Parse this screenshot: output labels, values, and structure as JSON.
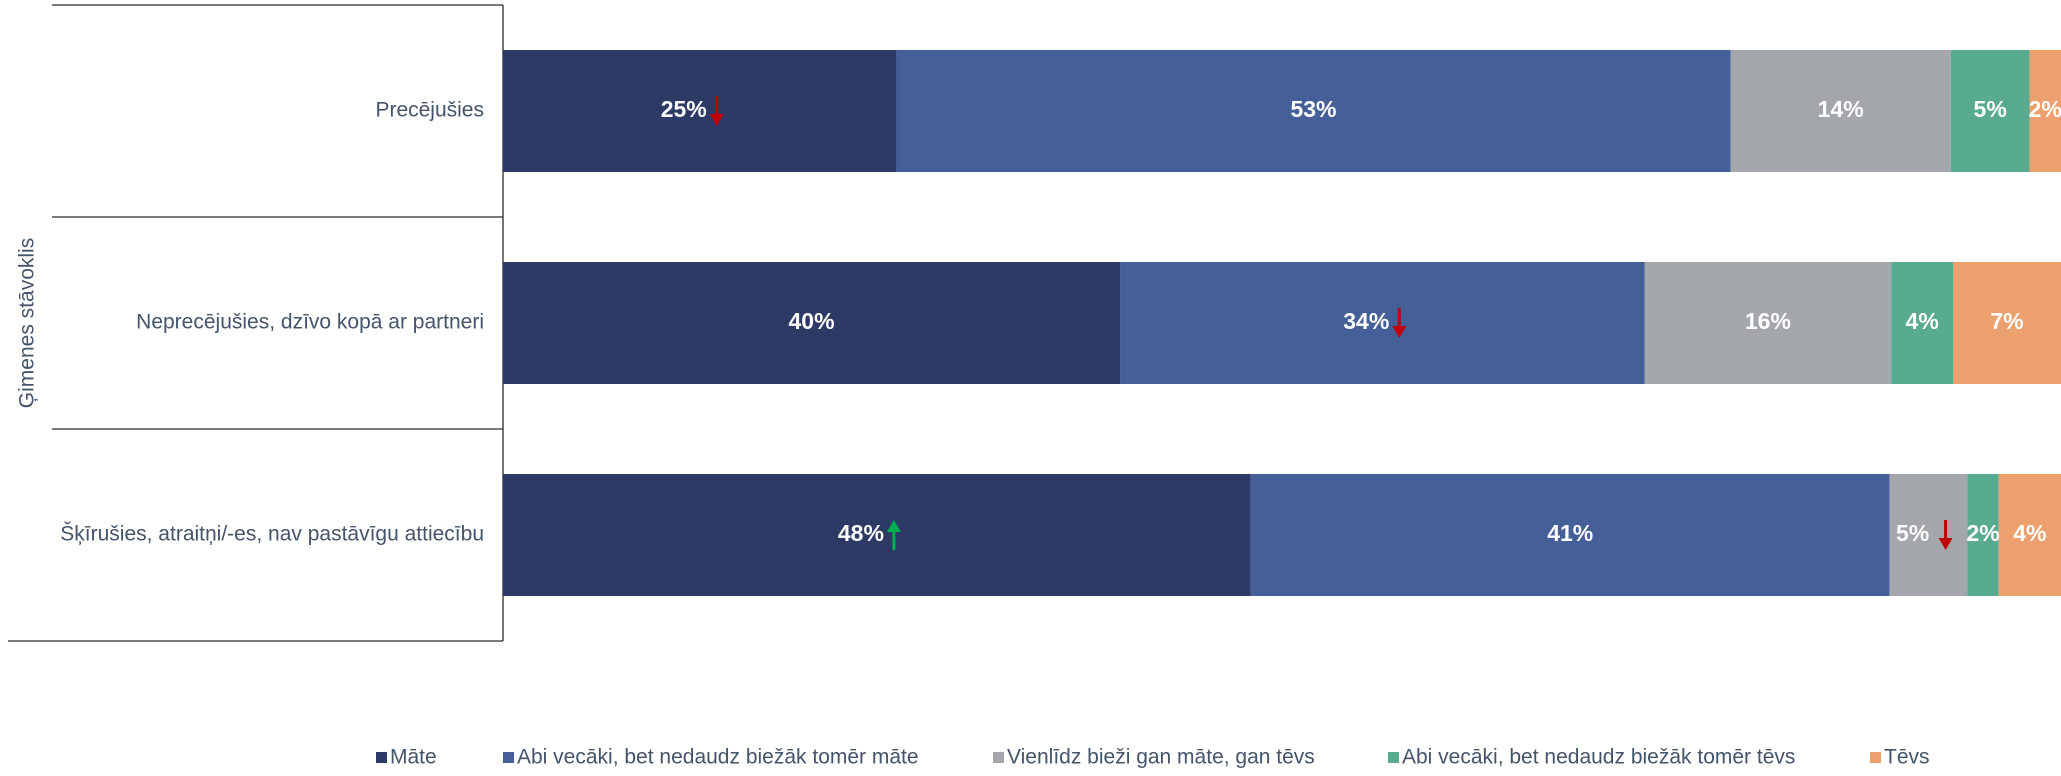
{
  "chart_data": {
    "type": "bar",
    "orientation": "horizontal",
    "stacked": true,
    "ylabel": "Ģimenes stāvoklis",
    "categories": [
      "Precējušies",
      "Neprecējušies, dzīvo kopā ar partneri",
      "Šķīrušies, atraitņi/-es, nav pastāvīgu attiecību"
    ],
    "series": [
      {
        "name": "Māte",
        "color": "#2d3a66",
        "values": [
          25,
          40,
          48
        ],
        "labels": [
          "25%",
          "40%",
          "48%"
        ]
      },
      {
        "name": "Abi vecāki, bet nedaudz biežāk tomēr māte",
        "color": "#456098",
        "values": [
          53,
          34,
          41
        ],
        "labels": [
          "53%",
          "34%",
          "41%"
        ]
      },
      {
        "name": "Vienlīdz bieži gan māte, gan tēvs",
        "color": "#a3a7ab",
        "values": [
          14,
          16,
          5
        ],
        "labels": [
          "14%",
          "16%",
          "5%"
        ]
      },
      {
        "name": "Abi vecāki, bet nedaudz biežāk tomēr tēvs",
        "color": "#58ab91",
        "values": [
          5,
          4,
          2
        ],
        "labels": [
          "5%",
          "4%",
          "2%"
        ]
      },
      {
        "name": "Tēvs",
        "color": "#eba06d",
        "values": [
          2,
          7,
          4
        ],
        "labels": [
          "2%",
          "7%",
          "4%"
        ]
      }
    ],
    "markers": [
      {
        "category": 0,
        "series": 0,
        "direction": "down",
        "color": "#c00000"
      },
      {
        "category": 1,
        "series": 1,
        "direction": "down",
        "color": "#c00000"
      },
      {
        "category": 2,
        "series": 0,
        "direction": "up",
        "color": "#00b050"
      },
      {
        "category": 2,
        "series": 2,
        "direction": "down",
        "color": "#c00000"
      }
    ],
    "legend_position": "bottom",
    "grid": false
  }
}
